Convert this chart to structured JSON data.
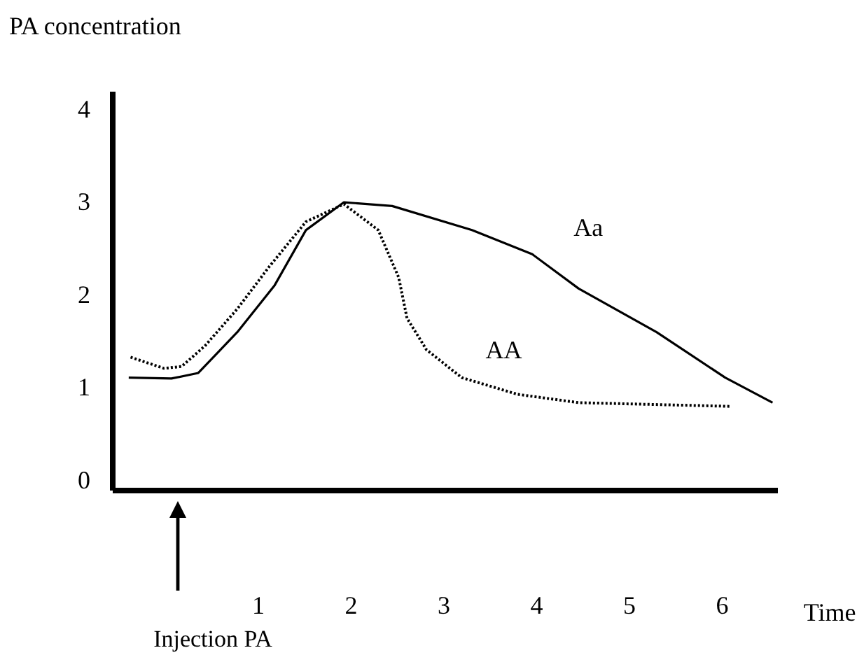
{
  "chart_data": {
    "type": "line",
    "ylabel": "PA concentration",
    "xlabel": "Time",
    "xlim": [
      -0.57,
      6.6
    ],
    "ylim": [
      -0.1,
      4.2
    ],
    "xticks": [
      1,
      2,
      3,
      4,
      5,
      6
    ],
    "yticks": [
      0,
      1,
      2,
      3,
      4
    ],
    "grid": false,
    "series": [
      {
        "name": "Aa",
        "color": "#000000",
        "line_style": "solid",
        "x": [
          -0.39,
          0.07,
          0.36,
          0.78,
          1.18,
          1.52,
          1.93,
          2.45,
          3.31,
          3.96,
          4.46,
          5.3,
          6.04,
          6.55
        ],
        "values": [
          1.11,
          1.1,
          1.16,
          1.6,
          2.1,
          2.7,
          3.0,
          2.96,
          2.7,
          2.44,
          2.07,
          1.6,
          1.11,
          0.84
        ]
      },
      {
        "name": "AA",
        "color": "#000000",
        "line_style": "dotted",
        "x": [
          -0.37,
          -0.01,
          0.18,
          0.43,
          0.78,
          1.12,
          1.52,
          1.93,
          2.3,
          2.52,
          2.61,
          2.82,
          3.2,
          3.8,
          4.46,
          6.1
        ],
        "values": [
          1.33,
          1.21,
          1.23,
          1.45,
          1.85,
          2.3,
          2.79,
          2.98,
          2.7,
          2.19,
          1.75,
          1.41,
          1.11,
          0.93,
          0.84,
          0.8
        ]
      }
    ],
    "annotations": [
      "Injection PA"
    ]
  }
}
